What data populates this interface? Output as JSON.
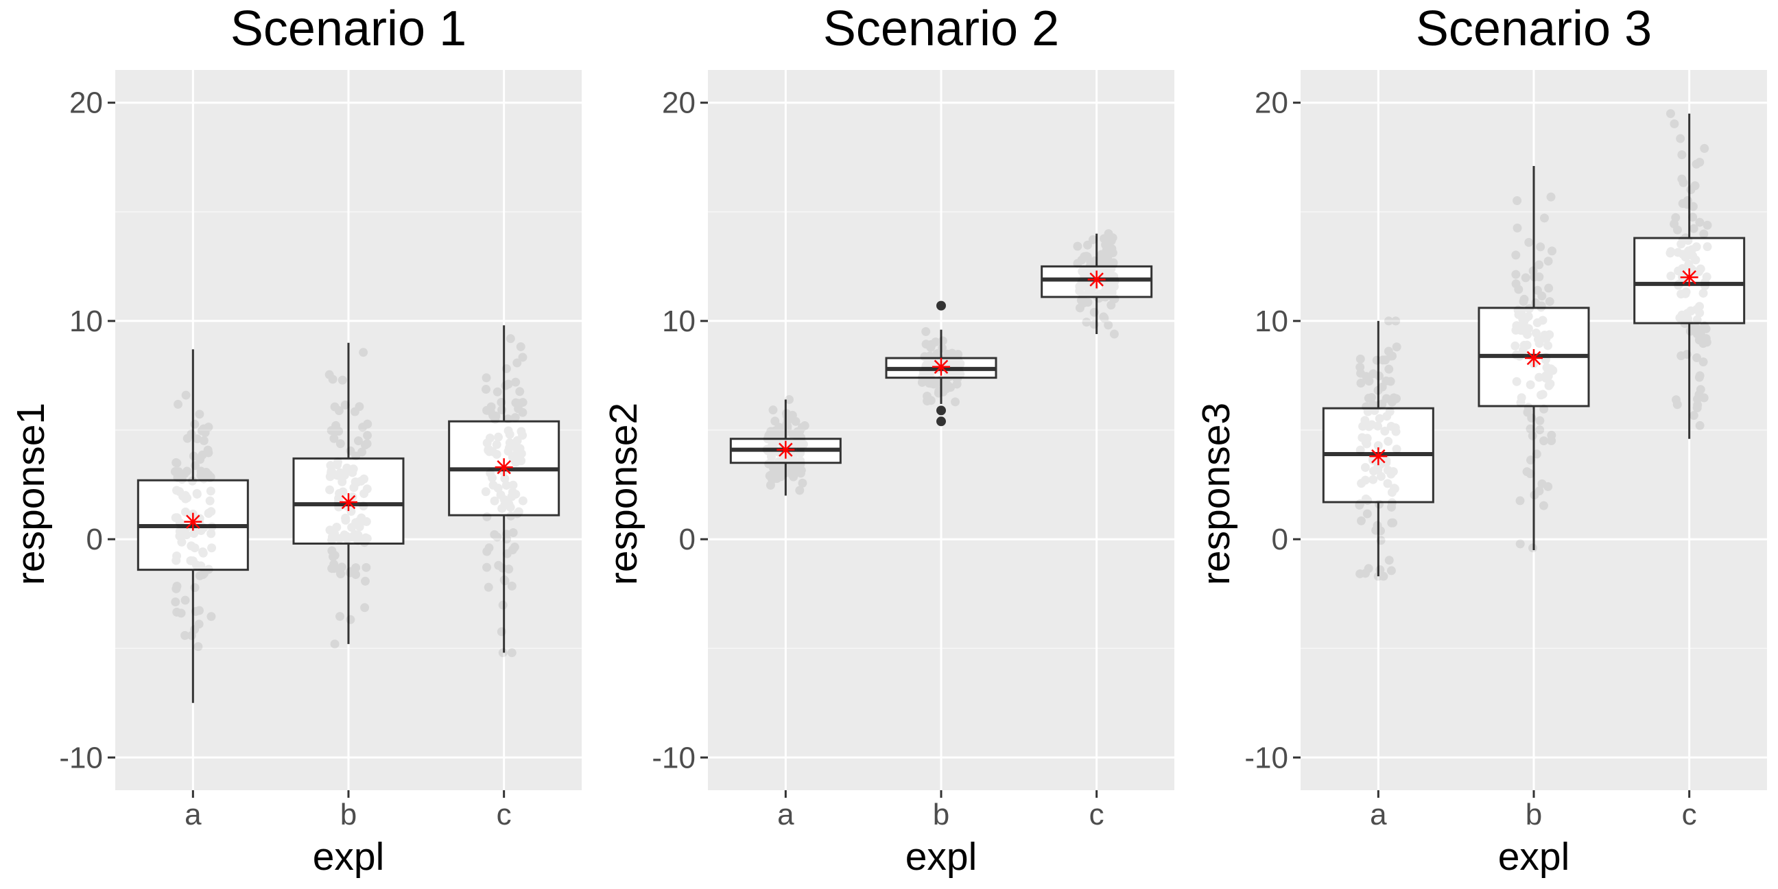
{
  "chart_data": [
    {
      "type": "box",
      "title": "Scenario 1",
      "xlabel": "expl",
      "ylabel": "response1",
      "ylim": [
        -11.5,
        21.5
      ],
      "yticks": [
        -10,
        0,
        10,
        20
      ],
      "categories": [
        "a",
        "b",
        "c"
      ],
      "grid": true,
      "boxes": [
        {
          "category": "a",
          "q1": -1.4,
          "median": 0.6,
          "q3": 2.7,
          "whisker_low": -7.5,
          "whisker_high": 8.7,
          "mean": 0.8
        },
        {
          "category": "b",
          "q1": -0.2,
          "median": 1.6,
          "q3": 3.7,
          "whisker_low": -4.8,
          "whisker_high": 9.0,
          "mean": 1.7
        },
        {
          "category": "c",
          "q1": 1.1,
          "median": 3.2,
          "q3": 5.4,
          "whisker_low": -5.2,
          "whisker_high": 9.8,
          "mean": 3.3
        }
      ],
      "outliers": []
    },
    {
      "type": "box",
      "title": "Scenario 2",
      "xlabel": "expl",
      "ylabel": "response2",
      "ylim": [
        -11.5,
        21.5
      ],
      "yticks": [
        -10,
        0,
        10,
        20
      ],
      "categories": [
        "a",
        "b",
        "c"
      ],
      "grid": true,
      "boxes": [
        {
          "category": "a",
          "q1": 3.5,
          "median": 4.1,
          "q3": 4.6,
          "whisker_low": 2.0,
          "whisker_high": 6.4,
          "mean": 4.1
        },
        {
          "category": "b",
          "q1": 7.4,
          "median": 7.8,
          "q3": 8.3,
          "whisker_low": 6.2,
          "whisker_high": 9.6,
          "mean": 7.9
        },
        {
          "category": "c",
          "q1": 11.1,
          "median": 11.9,
          "q3": 12.5,
          "whisker_low": 9.4,
          "whisker_high": 14.0,
          "mean": 11.9
        }
      ],
      "outliers": [
        {
          "category": "b",
          "y": 10.7
        },
        {
          "category": "b",
          "y": 5.9
        },
        {
          "category": "b",
          "y": 5.4
        }
      ]
    },
    {
      "type": "box",
      "title": "Scenario 3",
      "xlabel": "expl",
      "ylabel": "response3",
      "ylim": [
        -11.5,
        21.5
      ],
      "yticks": [
        -10,
        0,
        10,
        20
      ],
      "categories": [
        "a",
        "b",
        "c"
      ],
      "grid": true,
      "boxes": [
        {
          "category": "a",
          "q1": 1.7,
          "median": 3.9,
          "q3": 6.0,
          "whisker_low": -1.7,
          "whisker_high": 10.0,
          "mean": 3.8
        },
        {
          "category": "b",
          "q1": 6.1,
          "median": 8.4,
          "q3": 10.6,
          "whisker_low": -0.5,
          "whisker_high": 17.1,
          "mean": 8.3
        },
        {
          "category": "c",
          "q1": 9.9,
          "median": 11.7,
          "q3": 13.8,
          "whisker_low": 4.6,
          "whisker_high": 19.5,
          "mean": 12.0
        }
      ],
      "outliers": []
    }
  ],
  "colors": {
    "panel_background": "#ebebeb",
    "grid_major": "#ffffff",
    "grid_minor": "#f7f7f7",
    "box_fill": "#ffffff",
    "box_line": "#333333",
    "points": "#000000",
    "mean_marker": "#ff0000"
  }
}
